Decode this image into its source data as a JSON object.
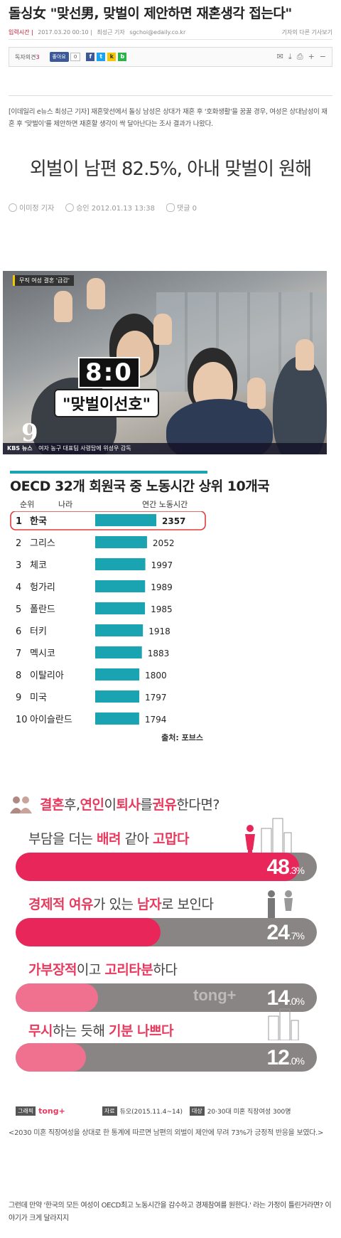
{
  "header": {
    "title": "돌싱女 \"맞선男, 맞벌이 제안하면 재혼생각 접는다\"",
    "meta_label": "입력시간 |",
    "meta_time": "2017.03.20 00:10 |",
    "meta_author": "최성근 기자",
    "meta_email": "sgchoi@edaily.co.kr",
    "other_articles": "기자의 다른 기사보기"
  },
  "toolbar": {
    "reader_label": "독자의견",
    "reader_count": "3",
    "fb_like": "좋아요",
    "fb_count": "0",
    "share_icons": [
      "facebook-icon",
      "twitter-icon",
      "kakao-icon",
      "band-icon"
    ],
    "tools": [
      "mail-icon",
      "download-icon",
      "print-icon",
      "zoom-in-icon",
      "zoom-out-icon"
    ]
  },
  "lead": "[이데일리 e뉴스 최성근 기자] 재혼맞선에서 돌싱 남성은 상대가 재혼 후 '호화생활'을 꿈꿀 경우, 여성은 상대남성이 재혼 후 '맞벌이'를 제안하면 재혼할 생각이 싹 달아난다는 조사 결과가 나왔다.",
  "headline": "외벌이 남편 82.5%, 아내 맞벌이 원해",
  "byline": {
    "author": "이미정 기자",
    "approved": "승인 2012.01.13 13:38",
    "comments": "댓글 0"
  },
  "video": {
    "tag": "무직 여성 결혼 '급감'",
    "score": "8:0",
    "score_caption": "\"맞벌이선호\"",
    "channel_number": "9",
    "kbs": "KBS 뉴스",
    "ticker": "여자 농구 대표팀 사령탑에 위성우 감독"
  },
  "chart_data": {
    "type": "bar",
    "title": "OECD 32개 회원국 중 노동시간 상위 10개국",
    "columns": [
      "순위",
      "나라",
      "연간 노동시간"
    ],
    "ranks": [
      "1",
      "2",
      "3",
      "4",
      "5",
      "6",
      "7",
      "8",
      "9",
      "10"
    ],
    "categories": [
      "한국",
      "그리스",
      "체코",
      "헝가리",
      "폴란드",
      "터키",
      "멕시코",
      "이탈리아",
      "미국",
      "아이슬란드"
    ],
    "values": [
      2357,
      2052,
      1997,
      1989,
      1985,
      1918,
      1883,
      1800,
      1797,
      1794
    ],
    "highlight_index": 0,
    "source": "출처: 포브스",
    "bar_color": "#1aa3b0",
    "highlight_color": "#e03a3a"
  },
  "survey": {
    "question_parts": [
      "결혼",
      " 후, ",
      "연인",
      "이 ",
      "퇴사",
      "를 ",
      "권유",
      "한다면?"
    ],
    "items": [
      {
        "label_parts": [
          "부담을 더는 ",
          "배려",
          " 같아 ",
          "고맙다"
        ],
        "value": "48",
        "decimal": ".3",
        "unit": "%",
        "percent": 48.3,
        "color": "#e8265a"
      },
      {
        "label_parts": [
          "경제적 여유",
          "가 있는 ",
          "남자",
          "로 보인다"
        ],
        "value": "24",
        "decimal": ".7",
        "unit": "%",
        "percent": 24.7,
        "color": "#e8265a"
      },
      {
        "label_parts": [
          "가부장적",
          "이고 ",
          "고리타분",
          "하다"
        ],
        "value": "14",
        "decimal": ".0",
        "unit": "%",
        "percent": 14.0,
        "color": "#f07090"
      },
      {
        "label_parts": [
          "무시",
          "하는 듯해 ",
          "기분 나쁘다",
          ""
        ],
        "value": "12",
        "decimal": ".0",
        "unit": "%",
        "percent": 12.0,
        "color": "#f07090"
      }
    ],
    "watermark": "tong+",
    "credit_graphic": "그래픽",
    "credit_brand": "tong+",
    "credit_source_label": "자료",
    "credit_source": "듀오(2015.11.4~14)",
    "credit_target_label": "대상",
    "credit_target": "20·30대 미혼 직장여성 300명"
  },
  "quote": "<2030 미혼 직장여성을 상대로 한 통계에 따르면 남편의 외벌이 제안에 무려 73%가 긍정적 반응을 보였다.>",
  "paragraph": "그런데 만약 '한국의 모든 여성이 OECD최고 노동시간을 감수하고 경제참여를 원한다.' 라는 가정이 틀린거라면? 이야기가 크게 달라지지"
}
